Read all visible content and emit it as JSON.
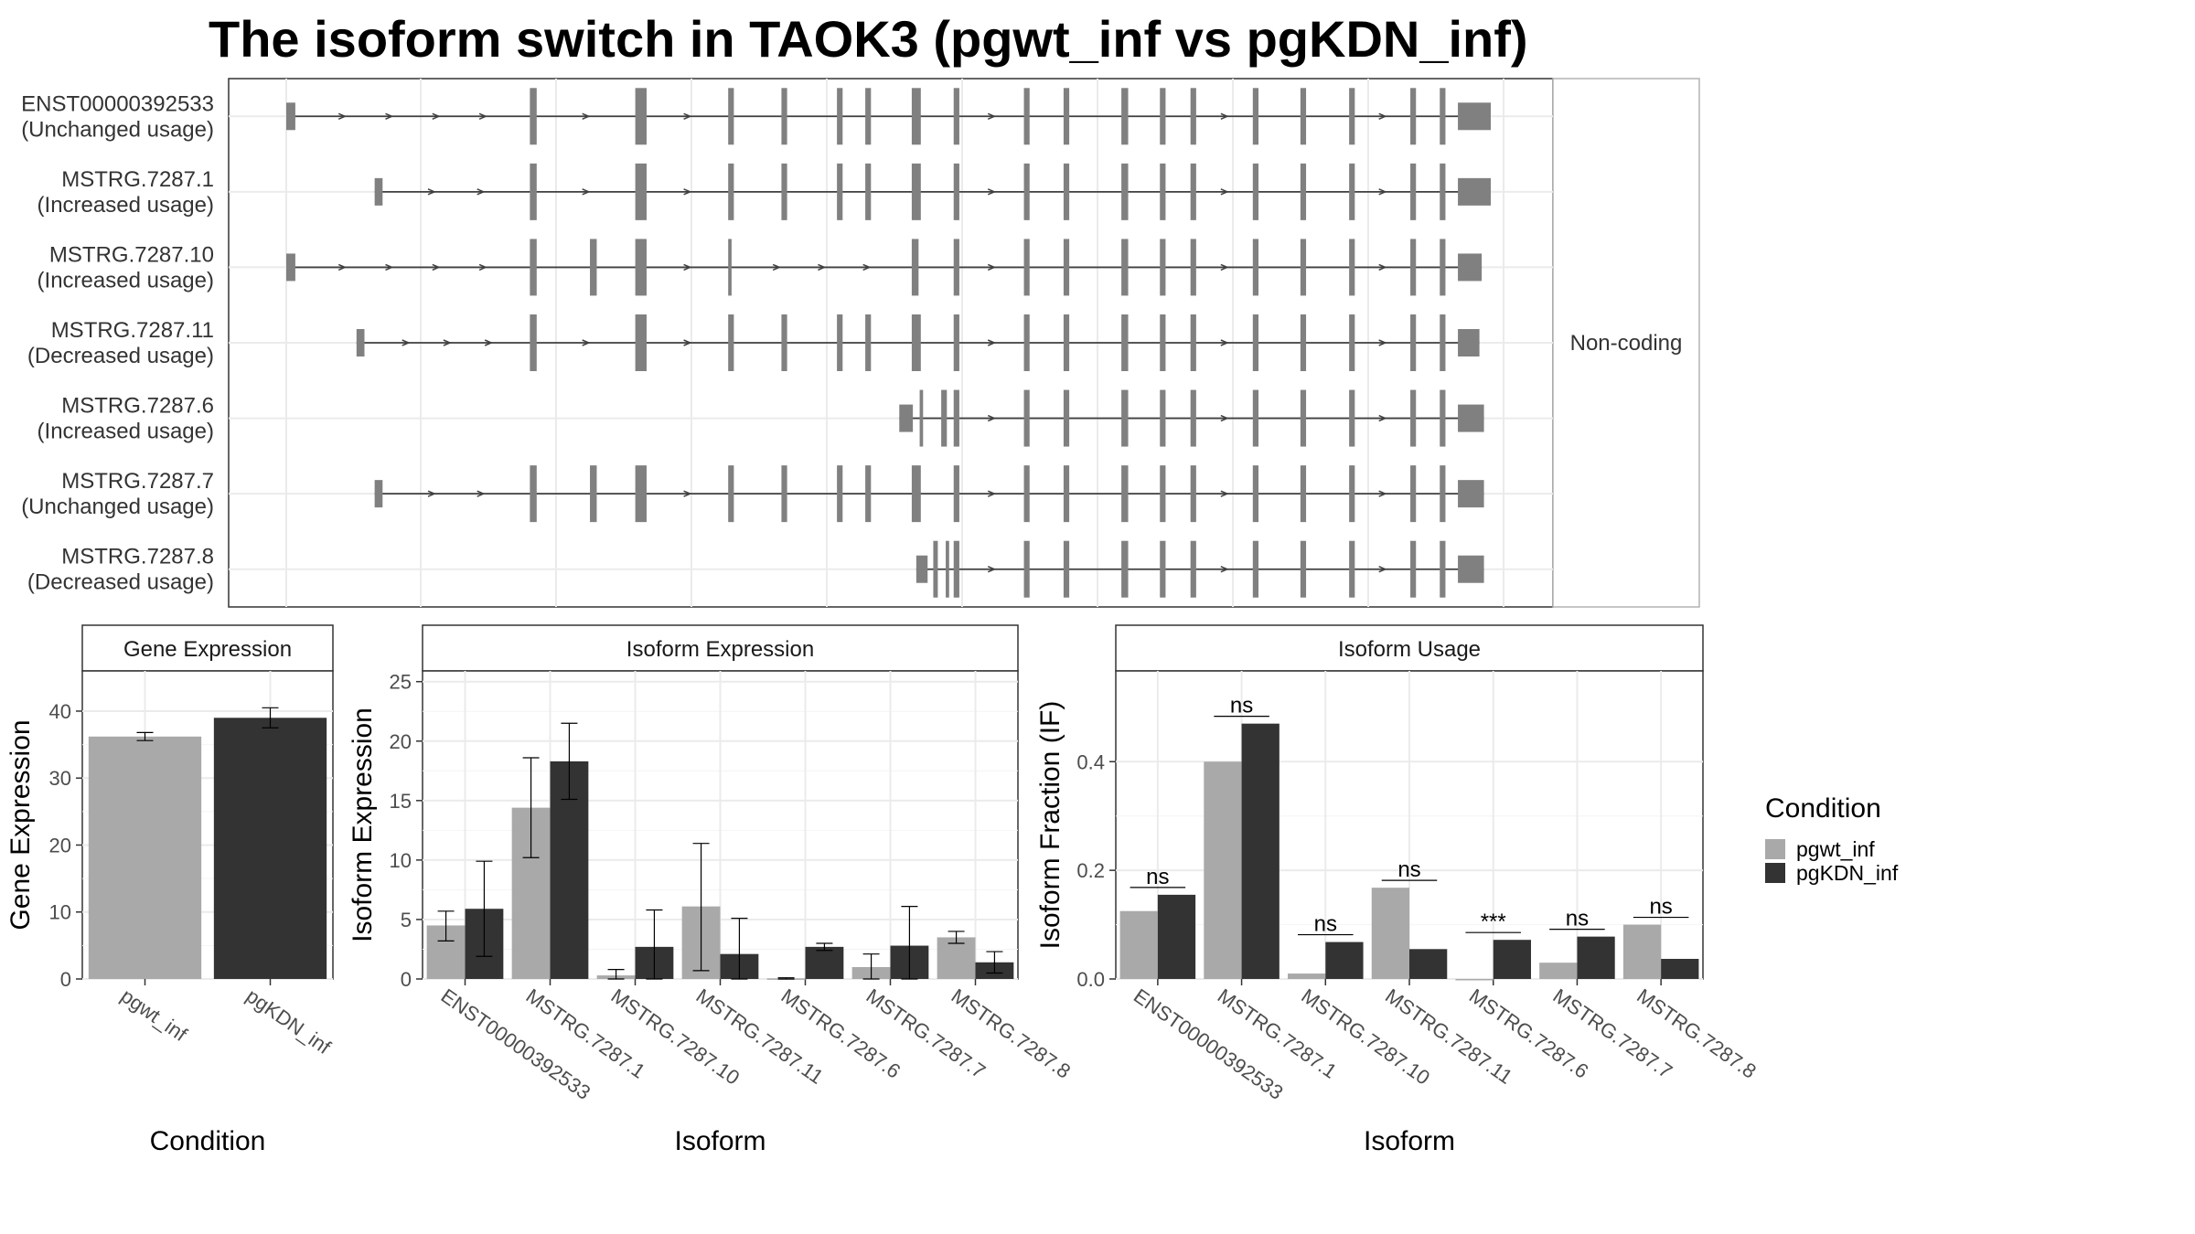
{
  "title": "The isoform switch in TAOK3 (pgwt_inf vs pgKDN_inf)",
  "colors": {
    "pgwt_inf": "#a9a9a9",
    "pgKDN_inf": "#333333",
    "exon": "#808080",
    "intron": "#404040"
  },
  "legend": {
    "title": "Condition",
    "items": [
      "pgwt_inf",
      "pgKDN_inf"
    ]
  },
  "chart_data": [
    {
      "type": "gene-structure",
      "strip_label": "Non-coding",
      "transcripts": [
        {
          "id": "ENST00000392533",
          "status": "(Unchanged usage)",
          "exons": [
            [
              0,
              8
            ],
            [
              215,
              221
            ],
            [
              308,
              318
            ],
            [
              390,
              395
            ],
            [
              437,
              442
            ],
            [
              486,
              491
            ],
            [
              511,
              516
            ],
            [
              552,
              560
            ],
            [
              589,
              594
            ],
            [
              651,
              656
            ],
            [
              686,
              691
            ],
            [
              737,
              743
            ],
            [
              771,
              776
            ],
            [
              798,
              803
            ],
            [
              853,
              858
            ],
            [
              895,
              900
            ],
            [
              938,
              943
            ],
            [
              992,
              997
            ],
            [
              1018,
              1023
            ],
            [
              1034,
              1063
            ]
          ]
        },
        {
          "id": "MSTRG.7287.1",
          "status": "(Increased usage)",
          "exons": [
            [
              78,
              85
            ],
            [
              215,
              221
            ],
            [
              308,
              318
            ],
            [
              390,
              395
            ],
            [
              437,
              442
            ],
            [
              486,
              491
            ],
            [
              511,
              516
            ],
            [
              552,
              560
            ],
            [
              589,
              594
            ],
            [
              651,
              656
            ],
            [
              686,
              691
            ],
            [
              737,
              743
            ],
            [
              771,
              776
            ],
            [
              798,
              803
            ],
            [
              853,
              858
            ],
            [
              895,
              900
            ],
            [
              938,
              943
            ],
            [
              992,
              997
            ],
            [
              1018,
              1023
            ],
            [
              1034,
              1063
            ]
          ]
        },
        {
          "id": "MSTRG.7287.10",
          "status": "(Increased usage)",
          "exons": [
            [
              0,
              8
            ],
            [
              215,
              221
            ],
            [
              268,
              274
            ],
            [
              308,
              318
            ],
            [
              390,
              393
            ],
            [
              552,
              558
            ],
            [
              589,
              594
            ],
            [
              651,
              656
            ],
            [
              686,
              691
            ],
            [
              737,
              743
            ],
            [
              771,
              776
            ],
            [
              798,
              803
            ],
            [
              853,
              858
            ],
            [
              895,
              900
            ],
            [
              938,
              943
            ],
            [
              992,
              997
            ],
            [
              1018,
              1023
            ],
            [
              1034,
              1055
            ]
          ]
        },
        {
          "id": "MSTRG.7287.11",
          "status": "(Decreased usage)",
          "exons": [
            [
              62,
              69
            ],
            [
              215,
              221
            ],
            [
              308,
              318
            ],
            [
              390,
              395
            ],
            [
              437,
              442
            ],
            [
              486,
              491
            ],
            [
              511,
              516
            ],
            [
              552,
              560
            ],
            [
              589,
              594
            ],
            [
              651,
              656
            ],
            [
              686,
              691
            ],
            [
              737,
              743
            ],
            [
              771,
              776
            ],
            [
              798,
              803
            ],
            [
              853,
              858
            ],
            [
              895,
              900
            ],
            [
              938,
              943
            ],
            [
              992,
              997
            ],
            [
              1018,
              1023
            ],
            [
              1034,
              1053
            ]
          ]
        },
        {
          "id": "MSTRG.7287.6",
          "status": "(Increased usage)",
          "exons": [
            [
              541,
              553
            ],
            [
              559,
              562
            ],
            [
              578,
              583
            ],
            [
              589,
              594
            ],
            [
              651,
              656
            ],
            [
              686,
              691
            ],
            [
              737,
              743
            ],
            [
              771,
              776
            ],
            [
              798,
              803
            ],
            [
              853,
              858
            ],
            [
              895,
              900
            ],
            [
              938,
              943
            ],
            [
              992,
              997
            ],
            [
              1018,
              1023
            ],
            [
              1034,
              1057
            ]
          ]
        },
        {
          "id": "MSTRG.7287.7",
          "status": "(Unchanged usage)",
          "exons": [
            [
              78,
              85
            ],
            [
              215,
              221
            ],
            [
              268,
              274
            ],
            [
              308,
              318
            ],
            [
              390,
              395
            ],
            [
              437,
              442
            ],
            [
              486,
              491
            ],
            [
              511,
              516
            ],
            [
              552,
              560
            ],
            [
              589,
              594
            ],
            [
              651,
              656
            ],
            [
              686,
              691
            ],
            [
              737,
              743
            ],
            [
              771,
              776
            ],
            [
              798,
              803
            ],
            [
              853,
              858
            ],
            [
              895,
              900
            ],
            [
              938,
              943
            ],
            [
              992,
              997
            ],
            [
              1018,
              1023
            ],
            [
              1034,
              1057
            ]
          ]
        },
        {
          "id": "MSTRG.7287.8",
          "status": "(Decreased usage)",
          "exons": [
            [
              556,
              566
            ],
            [
              571,
              575
            ],
            [
              582,
              585
            ],
            [
              589,
              594
            ],
            [
              651,
              656
            ],
            [
              686,
              691
            ],
            [
              737,
              743
            ],
            [
              771,
              776
            ],
            [
              798,
              803
            ],
            [
              853,
              858
            ],
            [
              895,
              900
            ],
            [
              938,
              943
            ],
            [
              992,
              997
            ],
            [
              1018,
              1023
            ],
            [
              1034,
              1057
            ]
          ]
        }
      ]
    },
    {
      "type": "bar",
      "panel": "Gene Expression",
      "ylabel": "Gene Expression",
      "xlabel": "Condition",
      "ylim": [
        0,
        46
      ],
      "yticks": [
        0,
        10,
        20,
        30,
        40
      ],
      "categories": [
        "pgwt_inf",
        "pgKDN_inf"
      ],
      "values": [
        36.2,
        39.0
      ],
      "errors": [
        [
          35.6,
          36.8
        ],
        [
          37.5,
          40.5
        ]
      ]
    },
    {
      "type": "bar",
      "panel": "Isoform Expression",
      "ylabel": "Isoform Expression",
      "xlabel": "Isoform",
      "ylim": [
        0,
        25.9
      ],
      "yticks": [
        0,
        5,
        10,
        15,
        20,
        25
      ],
      "categories": [
        "ENST00000392533",
        "MSTRG.7287.1",
        "MSTRG.7287.10",
        "MSTRG.7287.11",
        "MSTRG.7287.6",
        "MSTRG.7287.7",
        "MSTRG.7287.8"
      ],
      "series": [
        {
          "name": "pgwt_inf",
          "values": [
            4.5,
            14.4,
            0.3,
            6.1,
            0.05,
            1.0,
            3.5
          ],
          "errors": [
            [
              3.2,
              5.7
            ],
            [
              10.2,
              18.6
            ],
            [
              0.0,
              0.8
            ],
            [
              0.7,
              11.4
            ],
            [
              0.0,
              0.1
            ],
            [
              0.0,
              2.1
            ],
            [
              3.0,
              4.0
            ]
          ]
        },
        {
          "name": "pgKDN_inf",
          "values": [
            5.9,
            18.3,
            2.7,
            2.1,
            2.7,
            2.8,
            1.4
          ],
          "errors": [
            [
              1.9,
              9.9
            ],
            [
              15.1,
              21.5
            ],
            [
              0.0,
              5.8
            ],
            [
              0.0,
              5.1
            ],
            [
              2.4,
              3.0
            ],
            [
              0.0,
              6.1
            ],
            [
              0.5,
              2.3
            ]
          ]
        }
      ]
    },
    {
      "type": "bar",
      "panel": "Isoform Usage",
      "ylabel": "Isoform Fraction (IF)",
      "xlabel": "Isoform",
      "ylim": [
        0,
        0.567
      ],
      "yticks": [
        0.0,
        0.2,
        0.4
      ],
      "tick_labels": [
        "0.0",
        "0.2",
        "0.4"
      ],
      "categories": [
        "ENST00000392533",
        "MSTRG.7287.1",
        "MSTRG.7287.10",
        "MSTRG.7287.11",
        "MSTRG.7287.6",
        "MSTRG.7287.7",
        "MSTRG.7287.8"
      ],
      "series": [
        {
          "name": "pgwt_inf",
          "values": [
            0.125,
            0.4,
            0.01,
            0.168,
            0.0,
            0.03,
            0.1
          ]
        },
        {
          "name": "pgKDN_inf",
          "values": [
            0.155,
            0.47,
            0.068,
            0.055,
            0.072,
            0.078,
            0.037
          ]
        }
      ],
      "significance": [
        "ns",
        "ns",
        "ns",
        "ns",
        "***",
        "ns",
        "ns"
      ]
    }
  ]
}
